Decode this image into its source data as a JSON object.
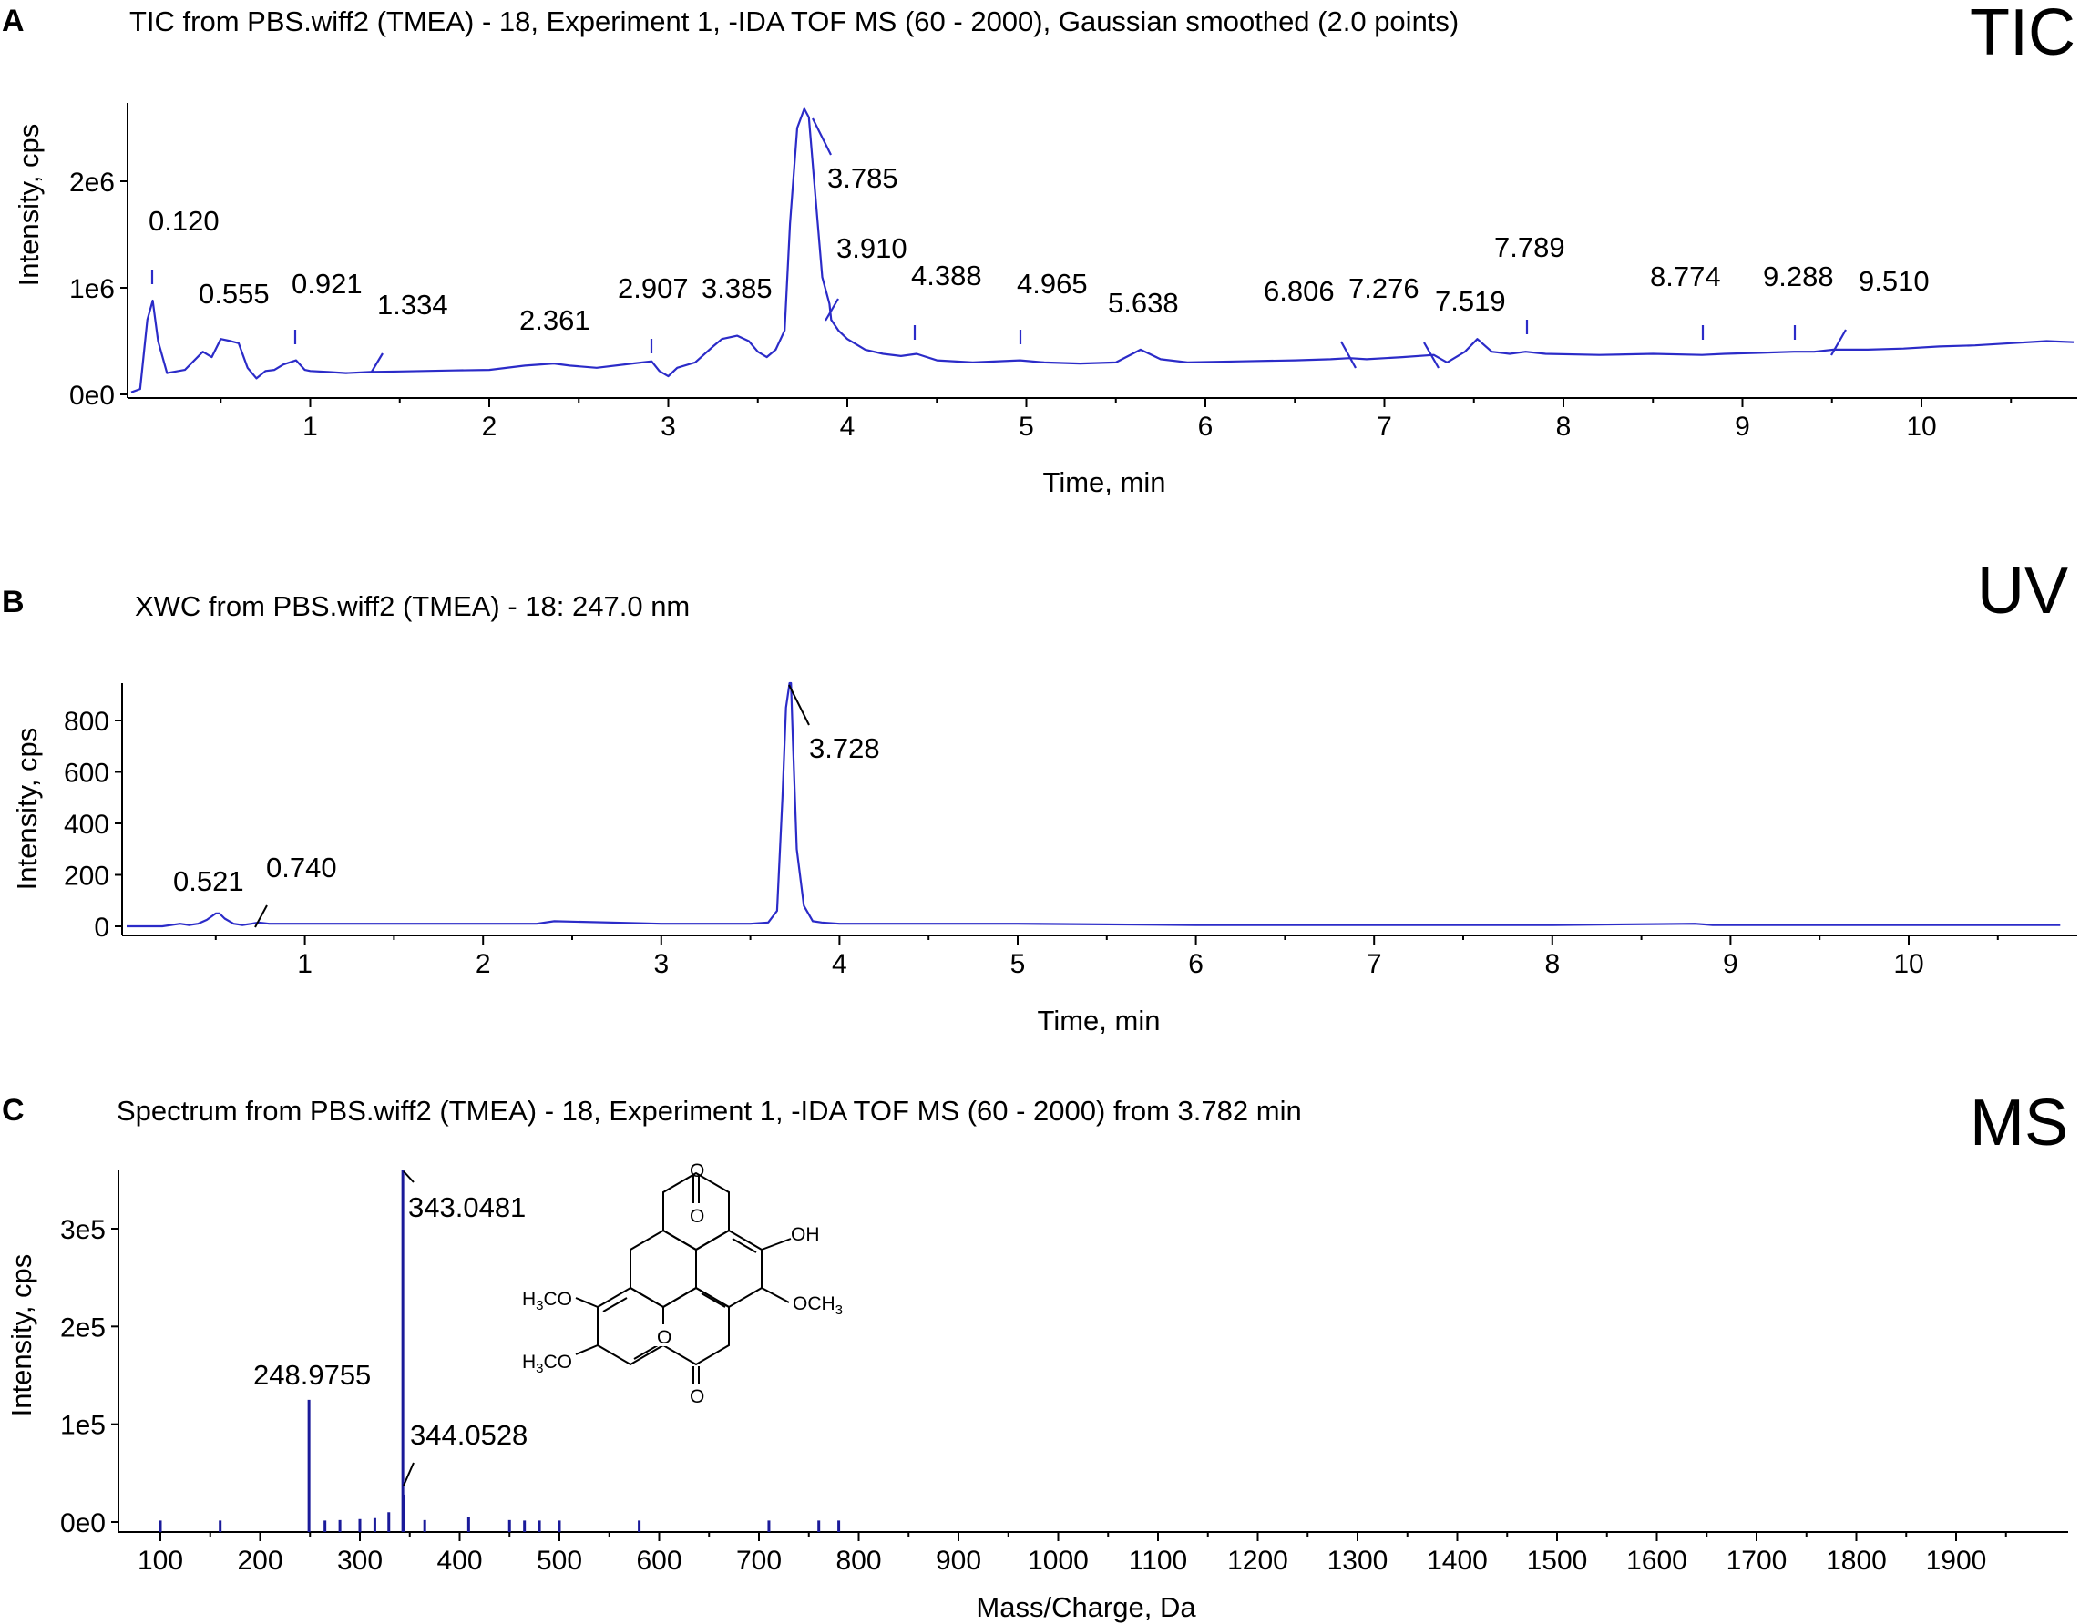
{
  "colors": {
    "trace": "#2b2bc8",
    "ms_bar": "#1a1a9a",
    "axis": "#000000"
  },
  "chart_data": [
    {
      "panel": "A",
      "badge": "TIC",
      "type": "line",
      "title": "TIC from PBS.wiff2 (TMEA) - 18, Experiment 1, -IDA TOF MS (60 - 2000), Gaussian smoothed (2.0 points)",
      "xlabel": "Time, min",
      "ylabel": "Intensity, cps",
      "xlim": [
        0,
        10.85
      ],
      "ylim": [
        0,
        2700000
      ],
      "xticks": [
        "1",
        "2",
        "3",
        "4",
        "5",
        "6",
        "7",
        "8",
        "9",
        "10"
      ],
      "yticks": [
        "0e0",
        "1e6",
        "2e6"
      ],
      "ytick_values": [
        0,
        1000000,
        2000000
      ],
      "grid": false,
      "series": [
        {
          "x": [
            0,
            0.05,
            0.09,
            0.12,
            0.15,
            0.2,
            0.3,
            0.4,
            0.45,
            0.5,
            0.555,
            0.6,
            0.65,
            0.7,
            0.75,
            0.8,
            0.85,
            0.921,
            0.97,
            1.0,
            1.1,
            1.2,
            1.334,
            1.5,
            1.8,
            2.0,
            2.2,
            2.361,
            2.45,
            2.6,
            2.8,
            2.907,
            2.95,
            3.0,
            3.05,
            3.15,
            3.25,
            3.3,
            3.385,
            3.45,
            3.5,
            3.55,
            3.6,
            3.65,
            3.68,
            3.72,
            3.76,
            3.785,
            3.82,
            3.86,
            3.9,
            3.91,
            3.95,
            4.0,
            4.1,
            4.2,
            4.3,
            4.388,
            4.5,
            4.7,
            4.965,
            5.1,
            5.3,
            5.5,
            5.638,
            5.75,
            5.9,
            6.2,
            6.5,
            6.7,
            6.806,
            6.9,
            7.1,
            7.276,
            7.35,
            7.45,
            7.519,
            7.6,
            7.7,
            7.789,
            7.9,
            8.2,
            8.5,
            8.774,
            8.9,
            9.1,
            9.288,
            9.4,
            9.51,
            9.7,
            9.9,
            10.1,
            10.3,
            10.5,
            10.7,
            10.85
          ],
          "y": [
            20000,
            50000,
            700000,
            880000,
            500000,
            200000,
            230000,
            400000,
            350000,
            520000,
            500000,
            480000,
            250000,
            150000,
            220000,
            230000,
            280000,
            320000,
            230000,
            220000,
            210000,
            200000,
            210000,
            215000,
            225000,
            230000,
            270000,
            290000,
            270000,
            250000,
            290000,
            310000,
            220000,
            170000,
            250000,
            300000,
            450000,
            520000,
            550000,
            500000,
            400000,
            350000,
            420000,
            600000,
            1600000,
            2500000,
            2680000,
            2600000,
            1900000,
            1100000,
            850000,
            700000,
            600000,
            520000,
            420000,
            380000,
            360000,
            380000,
            320000,
            300000,
            320000,
            300000,
            290000,
            300000,
            420000,
            330000,
            300000,
            310000,
            320000,
            330000,
            340000,
            330000,
            350000,
            370000,
            300000,
            400000,
            520000,
            400000,
            380000,
            400000,
            380000,
            370000,
            380000,
            370000,
            380000,
            390000,
            400000,
            400000,
            420000,
            420000,
            430000,
            450000,
            460000,
            480000,
            500000,
            490000
          ]
        }
      ],
      "annotations": [
        "0.120",
        "0.555",
        "0.921",
        "1.334",
        "2.361",
        "2.907",
        "3.385",
        "3.785",
        "3.910",
        "4.388",
        "4.965",
        "5.638",
        "6.806",
        "7.276",
        "7.519",
        "7.789",
        "8.774",
        "9.288",
        "9.510"
      ]
    },
    {
      "panel": "B",
      "badge": "UV",
      "type": "line",
      "title": "XWC from PBS.wiff2 (TMEA) - 18: 247.0 nm",
      "xlabel": "Time, min",
      "ylabel": "Intensity, cps",
      "xlim": [
        0,
        10.85
      ],
      "ylim": [
        0,
        970
      ],
      "xticks": [
        "1",
        "2",
        "3",
        "4",
        "5",
        "6",
        "7",
        "8",
        "9",
        "10"
      ],
      "yticks": [
        "0",
        "200",
        "400",
        "600",
        "800"
      ],
      "ytick_values": [
        0,
        200,
        400,
        600,
        800
      ],
      "grid": false,
      "series": [
        {
          "x": [
            0,
            0.2,
            0.3,
            0.35,
            0.4,
            0.45,
            0.5,
            0.521,
            0.55,
            0.6,
            0.65,
            0.7,
            0.74,
            0.8,
            1.0,
            1.5,
            2.0,
            2.3,
            2.4,
            3.0,
            3.5,
            3.6,
            3.65,
            3.68,
            3.7,
            3.72,
            3.728,
            3.74,
            3.76,
            3.8,
            3.85,
            3.9,
            4.0,
            4.5,
            5.0,
            6.0,
            7.0,
            8.0,
            8.8,
            8.9,
            10.85
          ],
          "y": [
            0,
            0,
            10,
            5,
            10,
            25,
            50,
            50,
            30,
            10,
            5,
            10,
            15,
            10,
            10,
            10,
            10,
            10,
            20,
            10,
            10,
            15,
            60,
            500,
            850,
            960,
            950,
            700,
            300,
            80,
            20,
            15,
            10,
            10,
            10,
            5,
            5,
            5,
            10,
            5,
            5
          ]
        }
      ],
      "annotations": [
        "0.521",
        "0.740",
        "3.728"
      ]
    },
    {
      "panel": "C",
      "badge": "MS",
      "type": "bar",
      "title": "Spectrum from PBS.wiff2 (TMEA) - 18, Experiment 1, -IDA TOF MS (60 - 2000) from 3.782 min",
      "xlabel": "Mass/Charge, Da",
      "ylabel": "Intensity, cps",
      "xlim": [
        60,
        2000
      ],
      "ylim": [
        0,
        360000
      ],
      "xticks": [
        "100",
        "200",
        "300",
        "400",
        "500",
        "600",
        "700",
        "800",
        "900",
        "1000",
        "1100",
        "1200",
        "1300",
        "1400",
        "1500",
        "1600",
        "1700",
        "1800",
        "1900"
      ],
      "yticks": [
        "0e0",
        "1e5",
        "2e5",
        "3e5"
      ],
      "ytick_values": [
        0,
        100000,
        200000,
        300000
      ],
      "grid": false,
      "series": [
        {
          "x": [
            100,
            160,
            248.9755,
            265,
            280,
            300,
            315,
            329,
            343.0481,
            344.0528,
            365,
            409,
            450,
            465,
            480,
            500,
            580,
            710,
            760,
            780
          ],
          "y": [
            1500,
            1500,
            125000,
            1500,
            2000,
            3000,
            4000,
            10000,
            360000,
            28000,
            2000,
            5000,
            2000,
            1500,
            1500,
            1500,
            1500,
            1500,
            1500,
            1500
          ]
        }
      ],
      "annotations": [
        "248.9755",
        "343.0481",
        "344.0528"
      ],
      "structure_labels": {
        "top_o": "O",
        "bottom_o": "O",
        "left_o": "O",
        "right_o": "O",
        "oh": "OH",
        "ome_right": "OCH",
        "ome_right_sub": "3",
        "meo_a_pre": "H",
        "meo_a_sub": "3",
        "meo_a_post": "CO",
        "meo_b_pre": "H",
        "meo_b_sub": "3",
        "meo_b_post": "CO"
      }
    }
  ]
}
